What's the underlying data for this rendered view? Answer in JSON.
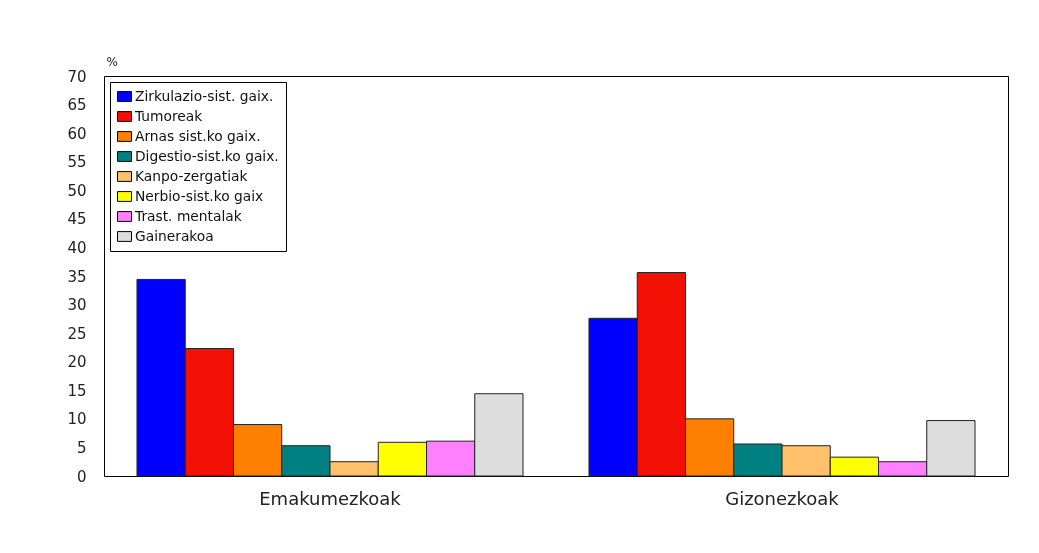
{
  "chart_data": {
    "type": "bar",
    "ylabel": "%",
    "categories": [
      "Emakumezkoak",
      "Gizonezkoak"
    ],
    "series": [
      {
        "name": "Zirkulazio-sist. gaix.",
        "color": "#0000ff",
        "values": [
          34.4,
          27.6
        ]
      },
      {
        "name": "Tumoreak",
        "color": "#f21005",
        "values": [
          22.3,
          35.6
        ]
      },
      {
        "name": "Arnas sist.ko gaix.",
        "color": "#ff8000",
        "values": [
          9.0,
          10.0
        ]
      },
      {
        "name": "Digestio-sist.ko gaix.",
        "color": "#008080",
        "values": [
          5.3,
          5.6
        ]
      },
      {
        "name": "Kanpo-zergatiak",
        "color": "#ffc06c",
        "values": [
          2.5,
          5.3
        ]
      },
      {
        "name": "Nerbio-sist.ko gaix",
        "color": "#ffff00",
        "values": [
          5.9,
          3.3
        ]
      },
      {
        "name": "Trast. mentalak",
        "color": "#ff80ff",
        "values": [
          6.1,
          2.5
        ]
      },
      {
        "name": "Gainerakoa",
        "color": "#dddddd",
        "values": [
          14.4,
          9.7
        ]
      }
    ],
    "ylim": [
      0,
      70
    ],
    "yticks": [
      0,
      5,
      10,
      15,
      20,
      25,
      30,
      35,
      40,
      45,
      50,
      55,
      60,
      65,
      70
    ],
    "grid": false,
    "legend": "top left"
  }
}
